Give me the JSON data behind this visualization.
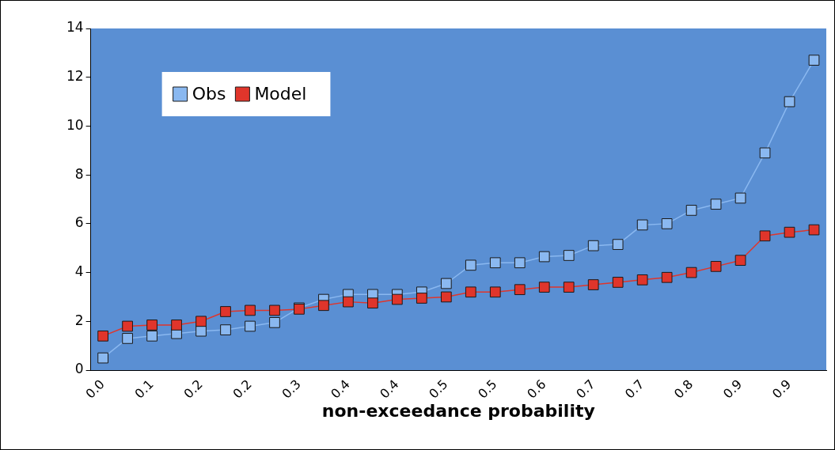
{
  "chart_data": {
    "type": "line",
    "xlabel": "non-exceedance probability",
    "categories": [
      "0.0",
      null,
      "0.1",
      null,
      "0.2",
      null,
      "0.2",
      null,
      "0.3",
      null,
      "0.4",
      null,
      "0.4",
      null,
      "0.5",
      null,
      "0.5",
      null,
      "0.6",
      null,
      "0.7",
      null,
      "0.7",
      null,
      "0.8",
      null,
      "0.9",
      null,
      "0.9",
      null
    ],
    "series": [
      {
        "name": "Obs",
        "color": "#8ab8f0",
        "values": [
          0.5,
          1.3,
          1.4,
          1.5,
          1.6,
          1.65,
          1.8,
          1.95,
          2.55,
          2.9,
          3.1,
          3.1,
          3.1,
          3.2,
          3.55,
          4.3,
          4.4,
          4.4,
          4.65,
          4.7,
          5.1,
          5.15,
          5.95,
          6.0,
          6.55,
          6.8,
          7.05,
          8.9,
          11.0,
          12.7
        ]
      },
      {
        "name": "Model",
        "color": "#e0352b",
        "values": [
          1.4,
          1.8,
          1.85,
          1.85,
          2.0,
          2.4,
          2.45,
          2.45,
          2.5,
          2.65,
          2.8,
          2.75,
          2.9,
          2.95,
          3.0,
          3.2,
          3.2,
          3.3,
          3.4,
          3.4,
          3.5,
          3.6,
          3.7,
          3.8,
          4.0,
          4.25,
          4.5,
          5.5,
          5.65,
          5.75
        ]
      }
    ],
    "ylim": [
      0,
      14
    ],
    "yticks": [
      0,
      2,
      4,
      6,
      8,
      10,
      12,
      14
    ],
    "grid": false,
    "legend": "top left",
    "marker": "square",
    "line_style": "solid"
  }
}
